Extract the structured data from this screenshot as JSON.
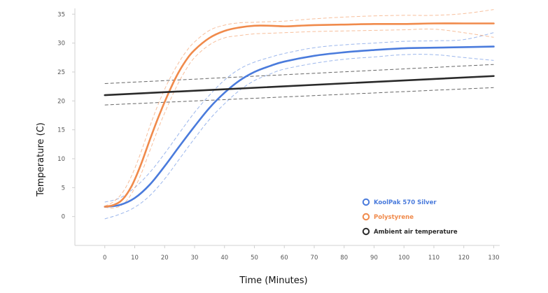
{
  "chart_data": {
    "type": "line",
    "title": "",
    "xlabel": "Time (Minutes)",
    "ylabel": "Temperature (C)",
    "xlim": [
      -10,
      132
    ],
    "ylim": [
      -5,
      36
    ],
    "x_ticks": [
      0,
      10,
      20,
      30,
      40,
      50,
      60,
      70,
      80,
      90,
      100,
      110,
      120,
      130
    ],
    "y_ticks": [
      0,
      5,
      10,
      15,
      20,
      25,
      30,
      35
    ],
    "grid": false,
    "legend_position": "bottom-right",
    "series": [
      {
        "name": "KoolPak 570 Silver",
        "color": "#4a7bdc",
        "x": [
          0,
          5,
          10,
          15,
          20,
          25,
          30,
          35,
          40,
          45,
          50,
          55,
          60,
          70,
          80,
          90,
          100,
          110,
          120,
          130
        ],
        "y": [
          1.7,
          2.0,
          3.2,
          5.5,
          8.7,
          12.2,
          15.6,
          18.8,
          21.4,
          23.5,
          25.0,
          26.0,
          26.8,
          27.8,
          28.4,
          28.8,
          29.1,
          29.2,
          29.3,
          29.4
        ],
        "upper": [
          2.5,
          3.2,
          5.0,
          7.6,
          10.9,
          14.5,
          18.0,
          21.0,
          23.6,
          25.5,
          26.7,
          27.5,
          28.2,
          29.2,
          29.7,
          30.0,
          30.3,
          30.4,
          30.6,
          31.8
        ],
        "lower": [
          -0.4,
          0.4,
          1.6,
          3.6,
          6.5,
          10.0,
          13.5,
          16.8,
          19.5,
          21.8,
          23.5,
          24.6,
          25.5,
          26.5,
          27.2,
          27.6,
          28.0,
          28.0,
          27.5,
          27.0
        ]
      },
      {
        "name": "Polystyrene",
        "color": "#f08a4b",
        "x": [
          0,
          3,
          6,
          9,
          12,
          15,
          18,
          21,
          24,
          27,
          30,
          35,
          40,
          45,
          50,
          55,
          60,
          65,
          70,
          80,
          90,
          100,
          110,
          120,
          130
        ],
        "y": [
          1.7,
          2.0,
          3.0,
          5.3,
          8.9,
          13.2,
          17.3,
          21.0,
          24.3,
          26.9,
          28.8,
          30.9,
          32.1,
          32.7,
          33.0,
          33.0,
          32.9,
          33.0,
          33.1,
          33.2,
          33.3,
          33.3,
          33.4,
          33.4,
          33.4
        ],
        "upper": [
          1.8,
          2.6,
          4.2,
          7.1,
          11.0,
          15.5,
          19.6,
          23.1,
          26.0,
          28.4,
          30.2,
          32.2,
          33.1,
          33.5,
          33.6,
          33.7,
          33.8,
          34.0,
          34.2,
          34.5,
          34.7,
          34.8,
          34.8,
          35.1,
          35.8
        ],
        "lower": [
          1.6,
          1.5,
          2.1,
          4.0,
          7.2,
          11.3,
          15.4,
          19.1,
          22.5,
          25.3,
          27.5,
          29.7,
          30.9,
          31.3,
          31.6,
          31.7,
          31.8,
          31.9,
          32.0,
          32.1,
          32.2,
          32.3,
          32.4,
          31.8,
          31.0
        ]
      },
      {
        "name": "Ambient air temperature",
        "color": "#2a2a2a",
        "x": [
          0,
          130
        ],
        "y": [
          21.0,
          24.3
        ],
        "upper": [
          23.0,
          26.3
        ],
        "lower": [
          19.3,
          22.3
        ]
      }
    ]
  }
}
